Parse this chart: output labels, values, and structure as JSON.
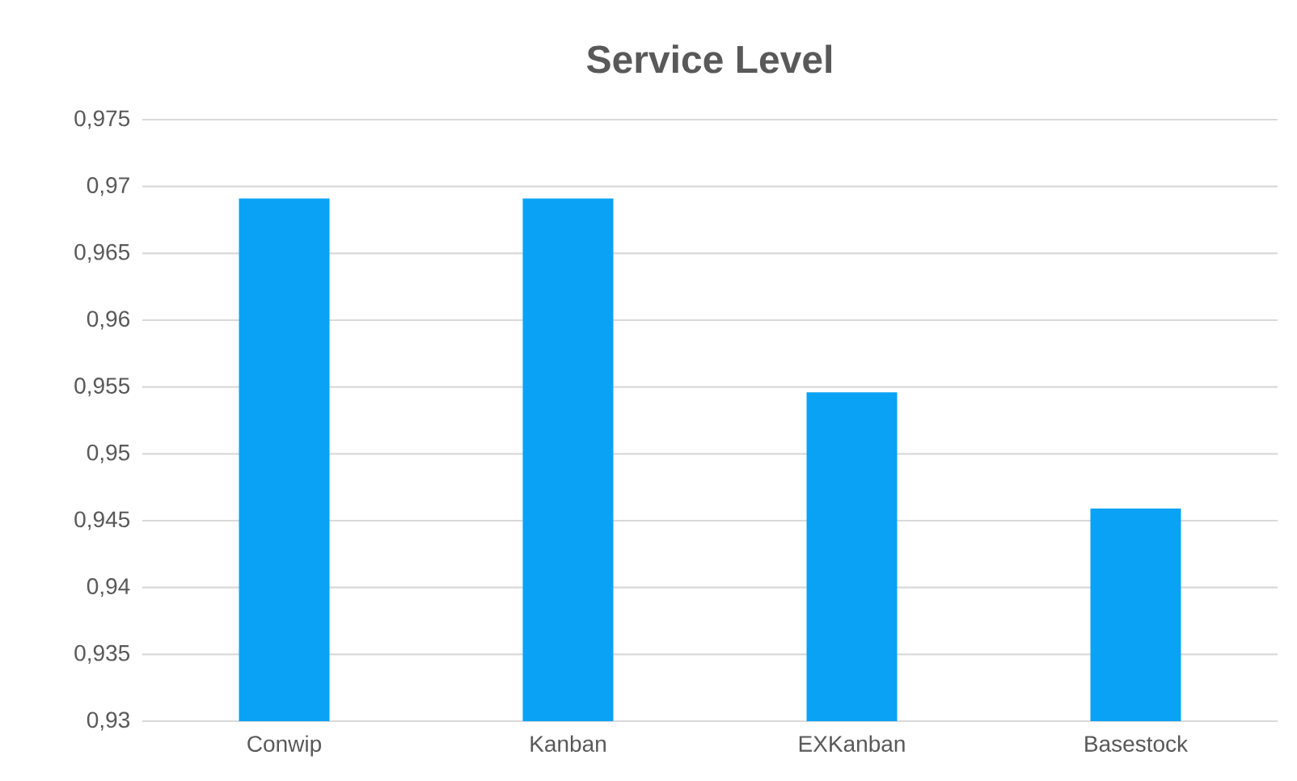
{
  "chart_data": {
    "type": "bar",
    "title": "Service Level",
    "categories": [
      "Conwip",
      "Kanban",
      "EXKanban",
      "Basestock"
    ],
    "values": [
      0.9691,
      0.9691,
      0.9546,
      0.9459
    ],
    "color": "#0aa2f5",
    "ylim": [
      0.93,
      0.975
    ],
    "yticks": [
      {
        "value": 0.93,
        "label": "0,93"
      },
      {
        "value": 0.935,
        "label": "0,935"
      },
      {
        "value": 0.94,
        "label": "0,94"
      },
      {
        "value": 0.945,
        "label": "0,945"
      },
      {
        "value": 0.95,
        "label": "0,95"
      },
      {
        "value": 0.955,
        "label": "0,955"
      },
      {
        "value": 0.96,
        "label": "0,96"
      },
      {
        "value": 0.965,
        "label": "0,965"
      },
      {
        "value": 0.97,
        "label": "0,97"
      },
      {
        "value": 0.975,
        "label": "0,975"
      }
    ],
    "grid": "y"
  }
}
